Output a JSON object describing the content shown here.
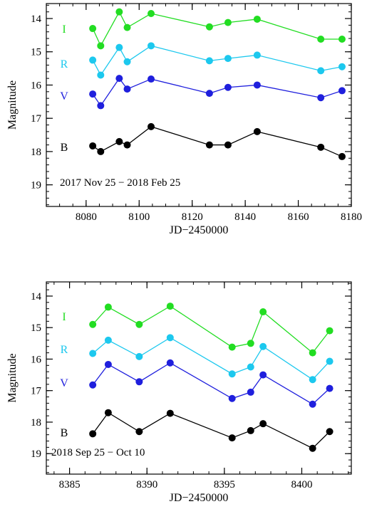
{
  "chart_data": [
    {
      "type": "line",
      "annotation": "2017 Nov 25 − 2018 Feb 25",
      "xlabel": "JD−2450000",
      "ylabel": "Magnitude",
      "xlim": [
        8065,
        8180
      ],
      "ylim": [
        19.65,
        13.55
      ],
      "y_inverted": true,
      "x_ticks": [
        8080,
        8100,
        8120,
        8140,
        8160,
        8180
      ],
      "y_ticks": [
        14,
        15,
        16,
        17,
        18,
        19
      ],
      "series": [
        {
          "name": "I",
          "color": "#22dd22",
          "x": [
            8082.5,
            8085.5,
            8092.5,
            8095.5,
            8104.5,
            8126.5,
            8133.5,
            8144.5,
            8168.5,
            8176.5
          ],
          "y": [
            14.3,
            14.82,
            13.8,
            14.27,
            13.85,
            14.25,
            14.12,
            14.02,
            14.62,
            14.62
          ]
        },
        {
          "name": "R",
          "color": "#1cc8ee",
          "x": [
            8082.5,
            8085.5,
            8092.5,
            8095.5,
            8104.5,
            8126.5,
            8133.5,
            8144.5,
            8168.5,
            8176.5
          ],
          "y": [
            15.25,
            15.7,
            14.87,
            15.3,
            14.82,
            15.27,
            15.2,
            15.1,
            15.57,
            15.45
          ]
        },
        {
          "name": "V",
          "color": "#1f1fdd",
          "x": [
            8082.5,
            8085.5,
            8092.5,
            8095.5,
            8104.5,
            8126.5,
            8133.5,
            8144.5,
            8168.5,
            8176.5
          ],
          "y": [
            16.27,
            16.62,
            15.8,
            16.12,
            15.82,
            16.25,
            16.07,
            16.0,
            16.38,
            16.17
          ]
        },
        {
          "name": "B",
          "color": "#000000",
          "x": [
            8082.5,
            8085.5,
            8092.5,
            8095.5,
            8104.5,
            8126.5,
            8133.5,
            8144.5,
            8168.5,
            8176.5
          ],
          "y": [
            17.83,
            18.0,
            17.7,
            17.8,
            17.25,
            17.8,
            17.8,
            17.4,
            17.87,
            18.15
          ]
        }
      ]
    },
    {
      "type": "line",
      "annotation": "2018 Sep 25 − Oct 10",
      "xlabel": "JD−2450000",
      "ylabel": "Magnitude",
      "xlim": [
        8383.5,
        8403.2
      ],
      "ylim": [
        19.65,
        13.55
      ],
      "y_inverted": true,
      "x_ticks": [
        8385,
        8390,
        8395,
        8400
      ],
      "y_ticks": [
        14,
        15,
        16,
        17,
        18,
        19
      ],
      "series": [
        {
          "name": "I",
          "color": "#22dd22",
          "x": [
            8386.5,
            8387.5,
            8389.5,
            8391.5,
            8395.5,
            8396.7,
            8397.5,
            8400.7,
            8401.8
          ],
          "y": [
            14.9,
            14.35,
            14.9,
            14.32,
            15.62,
            15.5,
            14.5,
            15.8,
            15.1
          ]
        },
        {
          "name": "R",
          "color": "#1cc8ee",
          "x": [
            8386.5,
            8387.5,
            8389.5,
            8391.5,
            8395.5,
            8396.7,
            8397.5,
            8400.7,
            8401.8
          ],
          "y": [
            15.82,
            15.4,
            15.92,
            15.32,
            16.47,
            16.25,
            15.6,
            16.65,
            16.07
          ]
        },
        {
          "name": "V",
          "color": "#1f1fdd",
          "x": [
            8386.5,
            8387.5,
            8389.5,
            8391.5,
            8395.5,
            8396.7,
            8397.5,
            8400.7,
            8401.8
          ],
          "y": [
            16.82,
            16.17,
            16.72,
            16.12,
            17.25,
            17.05,
            16.5,
            17.43,
            16.93
          ]
        },
        {
          "name": "B",
          "color": "#000000",
          "x": [
            8386.5,
            8387.5,
            8389.5,
            8391.5,
            8395.5,
            8396.7,
            8397.5,
            8400.7,
            8401.8
          ],
          "y": [
            18.37,
            17.7,
            18.3,
            17.72,
            18.5,
            18.27,
            18.05,
            18.83,
            18.3
          ]
        }
      ]
    }
  ]
}
